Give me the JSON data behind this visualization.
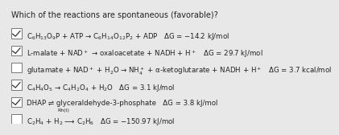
{
  "title": "Which of the reactions are spontaneous (favorable)?",
  "background_color": "#e8e8e8",
  "rows": [
    {
      "checked": true,
      "text": "C$_6$H$_{13}$O$_9$P + ATP → C$_6$H$_{14}$O$_{12}$P$_2$ + ADP   ΔG = −14.2 kJ/mol"
    },
    {
      "checked": true,
      "text": "L-malate + NAD$^+$ → oxaloacetate + NADH + H$^+$   ΔG = 29.7 kJ/mol"
    },
    {
      "checked": false,
      "text": "glutamate + NAD$^+$ + H$_2$O → NH$_4^+$ + α-ketoglutarate + NADH + H$^+$   ΔG = 3.7 kcal/mol"
    },
    {
      "checked": true,
      "text": "C$_4$H$_4$O$_5$ → C$_4$H$_2$O$_4$ + H$_2$O   ΔG = 3.1 kJ/mol"
    },
    {
      "checked": true,
      "text": "DHAP ⇌ glyceraldehyde-3-phosphate   ΔG = 3.8 kJ/mol"
    },
    {
      "checked": false,
      "text": "C$_2$H$_4$ + H$_2$ ⟶ C$_2$H$_6$   ΔG = −150.97 kJ/mol"
    }
  ],
  "row5_catalyst": "Rh(I)",
  "title_fontsize": 7.0,
  "row_fontsize": 6.2,
  "text_color": "#222222",
  "checkbox_color": "#777777",
  "check_color": "#333333"
}
